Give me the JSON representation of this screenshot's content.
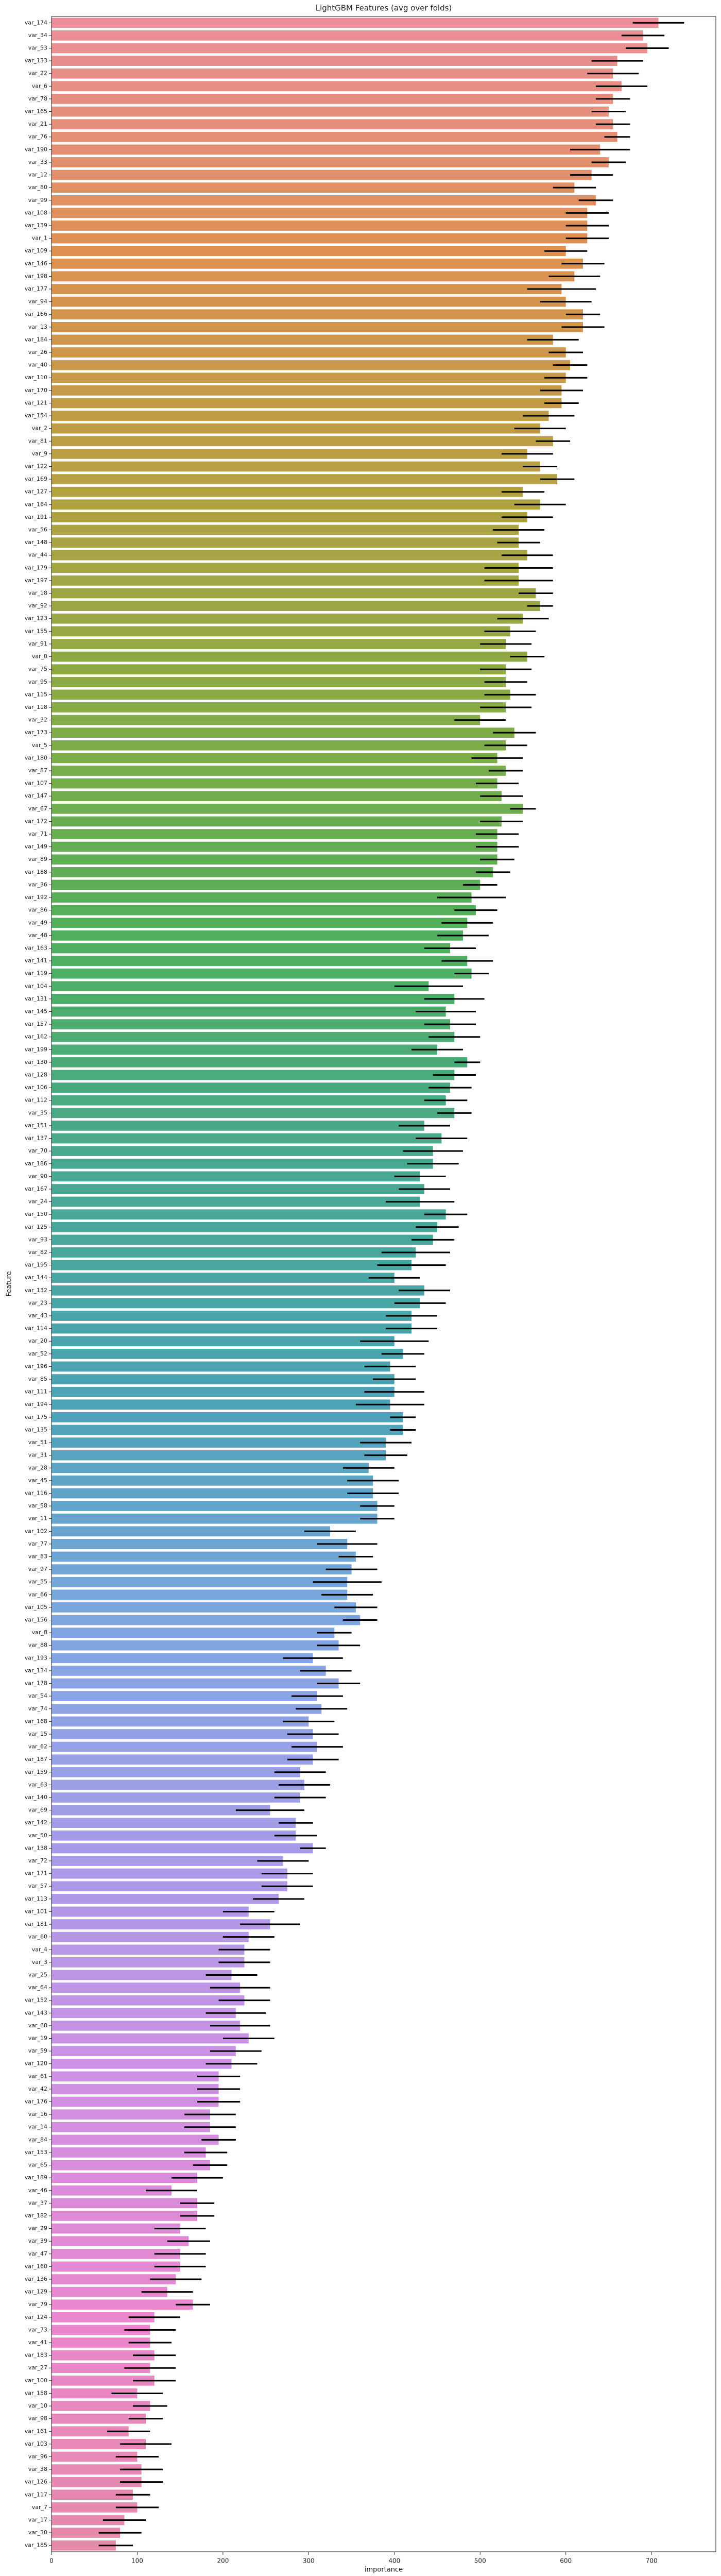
{
  "chart_data": {
    "type": "barh",
    "title": "LightGBM Features (avg over folds)",
    "x_label": "importance",
    "y_label": "Feature",
    "categories": [
      "var_174",
      "var_34",
      "var_53",
      "var_133",
      "var_22",
      "var_6",
      "var_78",
      "var_165",
      "var_21",
      "var_76",
      "var_190",
      "var_33",
      "var_12",
      "var_80",
      "var_99",
      "var_108",
      "var_139",
      "var_1",
      "var_109",
      "var_146",
      "var_198",
      "var_177",
      "var_94",
      "var_166",
      "var_13",
      "var_184",
      "var_26",
      "var_40",
      "var_110",
      "var_170",
      "var_121",
      "var_154",
      "var_2",
      "var_81",
      "var_9",
      "var_122",
      "var_169",
      "var_127",
      "var_164",
      "var_191",
      "var_56",
      "var_148",
      "var_44",
      "var_179",
      "var_197",
      "var_18",
      "var_92",
      "var_123",
      "var_155",
      "var_91",
      "var_0",
      "var_75",
      "var_95",
      "var_115",
      "var_118",
      "var_32",
      "var_173",
      "var_5",
      "var_180",
      "var_87",
      "var_107",
      "var_147",
      "var_67",
      "var_172",
      "var_71",
      "var_149",
      "var_89",
      "var_188",
      "var_36",
      "var_192",
      "var_86",
      "var_49",
      "var_48",
      "var_163",
      "var_141",
      "var_119",
      "var_104",
      "var_131",
      "var_145",
      "var_157",
      "var_162",
      "var_199",
      "var_130",
      "var_128",
      "var_106",
      "var_112",
      "var_35",
      "var_151",
      "var_137",
      "var_70",
      "var_186",
      "var_90",
      "var_167",
      "var_24",
      "var_150",
      "var_125",
      "var_93",
      "var_82",
      "var_195",
      "var_144",
      "var_132",
      "var_23",
      "var_43",
      "var_114",
      "var_20",
      "var_52",
      "var_196",
      "var_85",
      "var_111",
      "var_194",
      "var_175",
      "var_135",
      "var_51",
      "var_31",
      "var_28",
      "var_45",
      "var_116",
      "var_58",
      "var_11",
      "var_102",
      "var_77",
      "var_83",
      "var_97",
      "var_55",
      "var_66",
      "var_105",
      "var_156",
      "var_8",
      "var_88",
      "var_193",
      "var_134",
      "var_178",
      "var_54",
      "var_74",
      "var_168",
      "var_15",
      "var_62",
      "var_187",
      "var_159",
      "var_63",
      "var_140",
      "var_69",
      "var_142",
      "var_50",
      "var_138",
      "var_72",
      "var_171",
      "var_57",
      "var_113",
      "var_101",
      "var_181",
      "var_60",
      "var_4",
      "var_3",
      "var_25",
      "var_64",
      "var_152",
      "var_143",
      "var_68",
      "var_19",
      "var_59",
      "var_120",
      "var_61",
      "var_42",
      "var_176",
      "var_16",
      "var_14",
      "var_84",
      "var_153",
      "var_65",
      "var_189",
      "var_46",
      "var_37",
      "var_182",
      "var_29",
      "var_39",
      "var_47",
      "var_160",
      "var_136",
      "var_129",
      "var_79",
      "var_124",
      "var_73",
      "var_41",
      "var_183",
      "var_27",
      "var_100",
      "var_158",
      "var_10",
      "var_98",
      "var_161",
      "var_103",
      "var_96",
      "var_38",
      "var_126",
      "var_117",
      "var_7",
      "var_17",
      "var_30",
      "var_185"
    ],
    "values": [
      708,
      690,
      695,
      660,
      655,
      665,
      655,
      650,
      655,
      660,
      640,
      650,
      630,
      610,
      635,
      625,
      625,
      625,
      600,
      620,
      610,
      595,
      600,
      620,
      620,
      585,
      600,
      605,
      600,
      595,
      595,
      580,
      570,
      585,
      555,
      570,
      590,
      550,
      570,
      555,
      545,
      545,
      555,
      545,
      545,
      565,
      570,
      550,
      535,
      530,
      555,
      530,
      530,
      535,
      530,
      500,
      540,
      530,
      520,
      530,
      520,
      525,
      550,
      525,
      520,
      520,
      520,
      515,
      500,
      490,
      495,
      485,
      480,
      465,
      485,
      490,
      440,
      470,
      460,
      465,
      470,
      450,
      485,
      470,
      465,
      460,
      470,
      435,
      455,
      445,
      445,
      430,
      435,
      430,
      460,
      450,
      445,
      425,
      420,
      400,
      435,
      430,
      420,
      420,
      400,
      410,
      395,
      400,
      400,
      395,
      410,
      410,
      390,
      390,
      370,
      375,
      375,
      380,
      380,
      325,
      345,
      355,
      350,
      345,
      345,
      355,
      360,
      330,
      335,
      305,
      320,
      335,
      310,
      315,
      300,
      305,
      310,
      305,
      290,
      295,
      290,
      255,
      285,
      285,
      305,
      270,
      275,
      275,
      265,
      230,
      255,
      230,
      225,
      225,
      210,
      220,
      225,
      215,
      220,
      230,
      215,
      210,
      195,
      195,
      195,
      185,
      185,
      195,
      180,
      185,
      170,
      140,
      170,
      170,
      150,
      160,
      150,
      150,
      145,
      135,
      165,
      120,
      115,
      115,
      120,
      115,
      120,
      100,
      115,
      110,
      90,
      110,
      100,
      105,
      105,
      95,
      100,
      85,
      80,
      75
    ],
    "errors": [
      30,
      25,
      25,
      30,
      30,
      30,
      20,
      20,
      20,
      15,
      35,
      20,
      25,
      25,
      20,
      25,
      25,
      25,
      25,
      25,
      30,
      40,
      30,
      20,
      25,
      30,
      20,
      20,
      25,
      25,
      20,
      30,
      30,
      20,
      30,
      20,
      20,
      25,
      30,
      30,
      30,
      25,
      30,
      40,
      40,
      20,
      15,
      30,
      30,
      30,
      20,
      30,
      25,
      30,
      30,
      30,
      25,
      25,
      30,
      20,
      25,
      25,
      15,
      25,
      25,
      25,
      20,
      20,
      20,
      40,
      25,
      30,
      30,
      30,
      30,
      20,
      40,
      35,
      35,
      30,
      30,
      30,
      15,
      25,
      25,
      25,
      20,
      30,
      30,
      35,
      30,
      30,
      30,
      40,
      25,
      25,
      25,
      40,
      40,
      30,
      30,
      30,
      30,
      30,
      40,
      25,
      30,
      25,
      35,
      40,
      15,
      15,
      30,
      25,
      30,
      30,
      30,
      20,
      20,
      30,
      35,
      20,
      30,
      40,
      30,
      25,
      20,
      20,
      25,
      35,
      30,
      25,
      30,
      30,
      30,
      30,
      30,
      30,
      30,
      30,
      30,
      40,
      20,
      25,
      15,
      30,
      30,
      30,
      30,
      30,
      35,
      30,
      30,
      30,
      30,
      35,
      30,
      35,
      35,
      30,
      30,
      30,
      25,
      25,
      25,
      30,
      30,
      20,
      25,
      20,
      30,
      30,
      20,
      20,
      30,
      25,
      30,
      30,
      30,
      30,
      20,
      30,
      30,
      25,
      25,
      30,
      25,
      30,
      20,
      20,
      25,
      30,
      25,
      25,
      25,
      20,
      25,
      25,
      25,
      20
    ],
    "palette": [
      "#ea8e99",
      "#dd9050",
      "#b5a042",
      "#86ac45",
      "#4faf5c",
      "#48a891",
      "#4ba3b5",
      "#7fa6e2",
      "#a99be8",
      "#cf90e3",
      "#e986cd",
      "#e58aa8"
    ],
    "error_color": "#000000",
    "xlim": [
      0,
      775
    ],
    "xticks": [
      0,
      100,
      200,
      300,
      400,
      500,
      600,
      700
    ]
  }
}
